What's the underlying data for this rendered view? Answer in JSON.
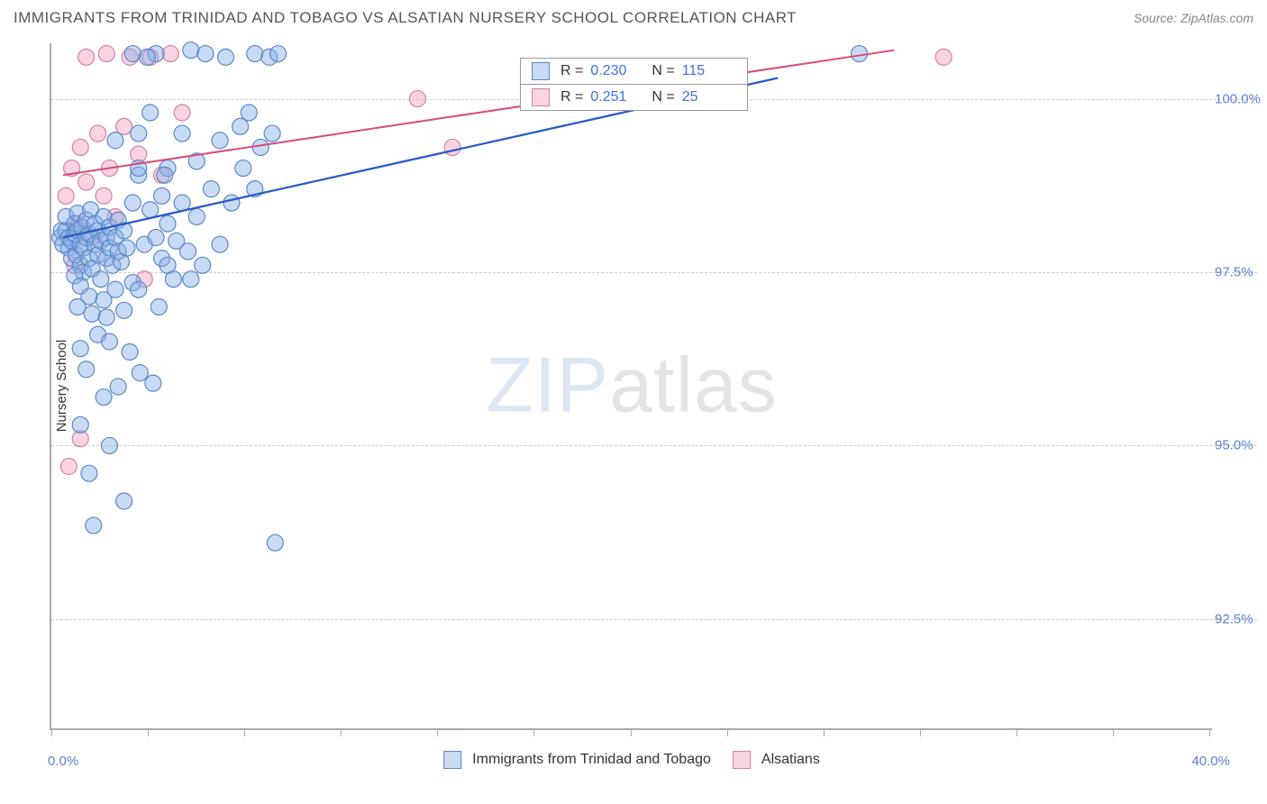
{
  "header": {
    "title": "IMMIGRANTS FROM TRINIDAD AND TOBAGO VS ALSATIAN NURSERY SCHOOL CORRELATION CHART",
    "source_prefix": "Source: ",
    "source_name": "ZipAtlas.com"
  },
  "watermark": {
    "part1": "ZIP",
    "part2": "atlas"
  },
  "chart": {
    "type": "scatter",
    "xlim": [
      0.0,
      40.0
    ],
    "ylim": [
      90.9,
      100.8
    ],
    "y_ticks": [
      92.5,
      95.0,
      97.5,
      100.0
    ],
    "y_tick_labels": [
      "92.5%",
      "95.0%",
      "97.5%",
      "100.0%"
    ],
    "x_label_min": "0.0%",
    "x_label_max": "40.0%",
    "x_tick_positions": [
      0.0,
      3.32,
      6.64,
      9.96,
      13.28,
      16.6,
      19.93,
      23.25,
      26.57,
      29.89,
      33.21,
      36.53,
      39.85
    ],
    "y_axis_title": "Nursery School",
    "marker_radius": 9,
    "marker_stroke_width": 1.2,
    "series": [
      {
        "id": "blue",
        "name": "Immigrants from Trinidad and Tobago",
        "color": "#6d9de8",
        "fill": "rgba(135,175,230,0.45)",
        "stroke": "#5a88c8",
        "r_value": "0.230",
        "n_value": "115",
        "trend": {
          "x1": 0.4,
          "y1": 98.0,
          "x2": 25.0,
          "y2": 100.3,
          "color": "#2a5bc9",
          "width": 2.3
        },
        "points": [
          [
            0.3,
            98.0
          ],
          [
            0.35,
            98.1
          ],
          [
            0.4,
            97.9
          ],
          [
            0.5,
            98.1
          ],
          [
            0.5,
            98.3
          ],
          [
            0.6,
            97.85
          ],
          [
            0.6,
            98.0
          ],
          [
            0.7,
            97.7
          ],
          [
            0.7,
            97.95
          ],
          [
            0.8,
            98.05
          ],
          [
            0.8,
            98.2
          ],
          [
            0.85,
            97.75
          ],
          [
            0.9,
            98.1
          ],
          [
            0.9,
            98.35
          ],
          [
            1.0,
            97.6
          ],
          [
            1.0,
            97.9
          ],
          [
            1.05,
            98.15
          ],
          [
            1.1,
            97.5
          ],
          [
            1.1,
            97.85
          ],
          [
            1.2,
            98.0
          ],
          [
            1.2,
            98.25
          ],
          [
            1.3,
            97.7
          ],
          [
            1.3,
            98.05
          ],
          [
            1.35,
            98.4
          ],
          [
            1.4,
            97.55
          ],
          [
            1.5,
            97.9
          ],
          [
            1.5,
            98.2
          ],
          [
            1.6,
            97.75
          ],
          [
            1.6,
            98.1
          ],
          [
            1.7,
            97.4
          ],
          [
            1.7,
            97.95
          ],
          [
            1.8,
            98.3
          ],
          [
            1.9,
            97.7
          ],
          [
            1.9,
            98.0
          ],
          [
            2.0,
            97.85
          ],
          [
            2.0,
            98.15
          ],
          [
            2.1,
            97.6
          ],
          [
            2.2,
            98.0
          ],
          [
            2.3,
            97.8
          ],
          [
            2.3,
            98.25
          ],
          [
            2.4,
            97.65
          ],
          [
            2.5,
            98.1
          ],
          [
            2.6,
            97.85
          ],
          [
            0.8,
            97.45
          ],
          [
            1.0,
            97.3
          ],
          [
            1.3,
            97.15
          ],
          [
            1.8,
            97.1
          ],
          [
            2.2,
            97.25
          ],
          [
            2.8,
            97.35
          ],
          [
            0.9,
            97.0
          ],
          [
            1.4,
            96.9
          ],
          [
            1.9,
            96.85
          ],
          [
            2.5,
            96.95
          ],
          [
            1.6,
            96.6
          ],
          [
            2.0,
            96.5
          ],
          [
            1.0,
            96.4
          ],
          [
            2.7,
            96.35
          ],
          [
            1.2,
            96.1
          ],
          [
            2.3,
            95.85
          ],
          [
            1.8,
            95.7
          ],
          [
            1.0,
            95.3
          ],
          [
            2.0,
            95.0
          ],
          [
            1.3,
            94.6
          ],
          [
            2.8,
            98.5
          ],
          [
            3.0,
            98.9
          ],
          [
            3.2,
            97.9
          ],
          [
            3.4,
            98.4
          ],
          [
            3.6,
            98.0
          ],
          [
            3.8,
            97.7
          ],
          [
            3.8,
            98.6
          ],
          [
            4.0,
            98.2
          ],
          [
            4.0,
            99.0
          ],
          [
            4.3,
            97.95
          ],
          [
            4.5,
            98.5
          ],
          [
            4.5,
            99.5
          ],
          [
            4.7,
            97.8
          ],
          [
            4.8,
            100.7
          ],
          [
            5.0,
            98.3
          ],
          [
            5.0,
            99.1
          ],
          [
            5.2,
            97.6
          ],
          [
            5.3,
            100.65
          ],
          [
            5.5,
            98.7
          ],
          [
            5.8,
            99.4
          ],
          [
            5.8,
            97.9
          ],
          [
            6.0,
            100.6
          ],
          [
            6.2,
            98.5
          ],
          [
            6.5,
            99.6
          ],
          [
            6.6,
            99.0
          ],
          [
            6.8,
            99.8
          ],
          [
            7.0,
            100.65
          ],
          [
            7.2,
            99.3
          ],
          [
            7.5,
            100.6
          ],
          [
            7.6,
            99.5
          ],
          [
            7.8,
            100.65
          ],
          [
            3.0,
            97.25
          ],
          [
            3.5,
            95.9
          ],
          [
            4.2,
            97.4
          ],
          [
            3.7,
            97.0
          ],
          [
            3.9,
            98.9
          ],
          [
            4.8,
            97.4
          ],
          [
            3.0,
            99.5
          ],
          [
            3.4,
            99.8
          ],
          [
            3.6,
            100.65
          ],
          [
            3.0,
            99.0
          ],
          [
            2.2,
            99.4
          ],
          [
            2.8,
            100.65
          ],
          [
            3.3,
            100.6
          ],
          [
            7.0,
            98.7
          ],
          [
            7.7,
            93.6
          ],
          [
            4.0,
            97.6
          ],
          [
            3.05,
            96.05
          ],
          [
            1.45,
            93.85
          ],
          [
            2.5,
            94.2
          ],
          [
            27.8,
            100.65
          ]
        ]
      },
      {
        "id": "pink",
        "name": "Alsatians",
        "color": "#e89ab8",
        "fill": "rgba(240,160,190,0.45)",
        "stroke": "#d67fa0",
        "r_value": "0.251",
        "n_value": "25",
        "trend": {
          "x1": 0.4,
          "y1": 98.9,
          "x2": 29.0,
          "y2": 100.7,
          "color": "#d84a7a",
          "width": 2.0
        },
        "points": [
          [
            0.5,
            98.6
          ],
          [
            0.7,
            99.0
          ],
          [
            0.9,
            98.2
          ],
          [
            1.0,
            99.3
          ],
          [
            1.2,
            98.8
          ],
          [
            1.4,
            98.0
          ],
          [
            1.6,
            99.5
          ],
          [
            1.8,
            98.6
          ],
          [
            2.0,
            99.0
          ],
          [
            2.2,
            98.3
          ],
          [
            2.5,
            99.6
          ],
          [
            2.7,
            100.6
          ],
          [
            3.0,
            99.2
          ],
          [
            3.4,
            100.6
          ],
          [
            3.8,
            98.9
          ],
          [
            4.1,
            100.65
          ],
          [
            4.5,
            99.8
          ],
          [
            1.9,
            100.65
          ],
          [
            1.2,
            100.6
          ],
          [
            0.8,
            97.6
          ],
          [
            3.2,
            97.4
          ],
          [
            1.0,
            95.1
          ],
          [
            0.6,
            94.7
          ],
          [
            12.6,
            100.0
          ],
          [
            13.8,
            99.3
          ],
          [
            30.7,
            100.6
          ]
        ]
      }
    ]
  }
}
